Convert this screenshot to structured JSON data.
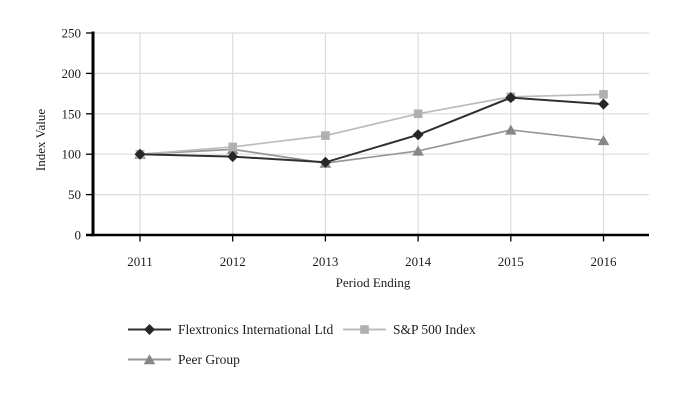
{
  "chart_data": {
    "type": "line",
    "title": "",
    "xlabel": "Period Ending",
    "ylabel": "Index Value",
    "categories": [
      "2011",
      "2012",
      "2013",
      "2014",
      "2015",
      "2016"
    ],
    "y_ticks": [
      0,
      50,
      100,
      150,
      200,
      250
    ],
    "ylim": [
      0,
      250
    ],
    "grid": true,
    "legend_position": "below-chart",
    "axis_color": "#000000",
    "grid_color": "#dcdcdc",
    "text_color": "#1c1c1c",
    "series": [
      {
        "name": "Flextronics International Ltd",
        "marker": "diamond",
        "line_color": "#303030",
        "marker_color": "#262626",
        "values": [
          100,
          97,
          90,
          124,
          170,
          162
        ]
      },
      {
        "name": "S&P 500 Index",
        "marker": "square",
        "line_color": "#bcbcbc",
        "marker_color": "#b0b0b0",
        "values": [
          100,
          109,
          123,
          150,
          171,
          174
        ]
      },
      {
        "name": "Peer Group",
        "marker": "triangle",
        "line_color": "#979797",
        "marker_color": "#868686",
        "values": [
          100,
          106,
          89,
          104,
          130,
          117
        ]
      }
    ]
  }
}
